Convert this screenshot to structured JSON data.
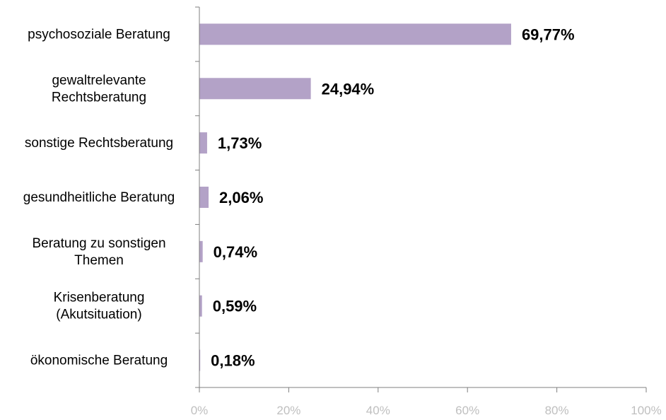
{
  "chart_data": {
    "type": "bar",
    "orientation": "horizontal",
    "categories": [
      [
        "psychosoziale Beratung"
      ],
      [
        "gewaltrelevante",
        "Rechtsberatung"
      ],
      [
        "sonstige Rechtsberatung"
      ],
      [
        "gesundheitliche Beratung"
      ],
      [
        "Beratung zu sonstigen",
        "Themen"
      ],
      [
        "Krisenberatung",
        "(Akutsituation)"
      ],
      [
        "ökonomische Beratung"
      ]
    ],
    "values": [
      69.77,
      24.94,
      1.73,
      2.06,
      0.74,
      0.59,
      0.18
    ],
    "value_labels": [
      "69,77%",
      "24,94%",
      "1,73%",
      "2,06%",
      "0,74%",
      "0,59%",
      "0,18%"
    ],
    "x_ticks": [
      "0%",
      "20%",
      "40%",
      "60%",
      "80%",
      "100%"
    ],
    "xlim": [
      0,
      100
    ],
    "title": "",
    "xlabel": "",
    "ylabel": "",
    "grid": false,
    "colors": {
      "bar": "#b3a2c7",
      "axis": "#7f7f7f",
      "tick_text": "#bfbfbf",
      "label_text": "#000000"
    }
  }
}
